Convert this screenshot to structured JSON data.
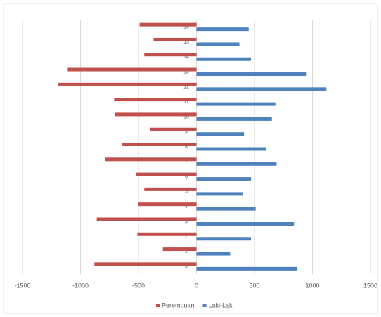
{
  "chart_data": {
    "type": "bar",
    "orientation": "horizontal",
    "categories": [
      "0",
      "1",
      "2",
      "3",
      "4",
      "5",
      "6",
      "7",
      "8",
      "9",
      "10",
      "11",
      "12",
      "13",
      "14",
      "15",
      "16"
    ],
    "series": [
      {
        "name": "Perempuan",
        "color": "#c0504d",
        "values": [
          -880,
          -290,
          -510,
          -860,
          -500,
          -450,
          -520,
          -790,
          -640,
          -400,
          -700,
          -710,
          -1190,
          -1110,
          -450,
          -370,
          -490
        ]
      },
      {
        "name": "Laki-Laki",
        "color": "#4f81bd",
        "values": [
          870,
          290,
          470,
          840,
          510,
          400,
          470,
          690,
          600,
          410,
          650,
          680,
          1120,
          950,
          470,
          370,
          450
        ]
      }
    ],
    "xlim": [
      -1500,
      1500
    ],
    "xticks": [
      -1500,
      -1000,
      -500,
      0,
      500,
      1000,
      1500
    ],
    "grid": true,
    "legend": "bottom"
  }
}
